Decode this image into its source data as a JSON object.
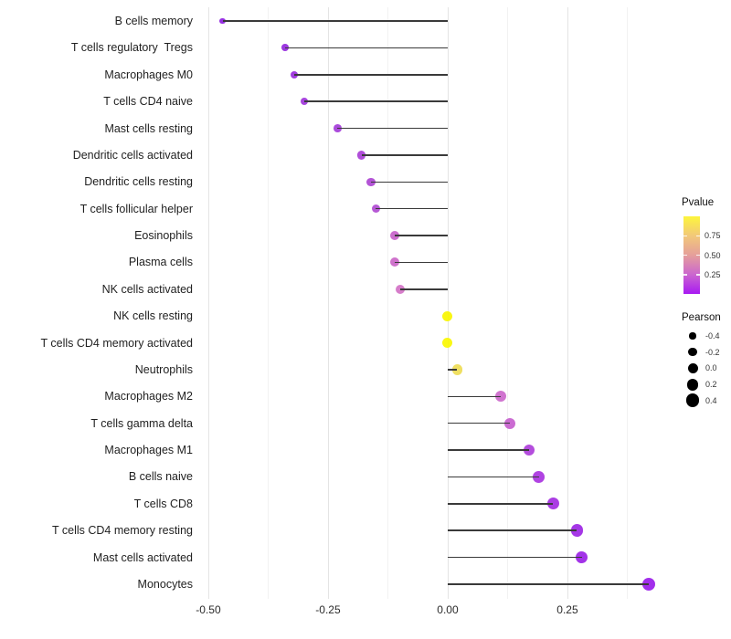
{
  "chart_data": {
    "type": "lollipop",
    "orientation": "horizontal",
    "title": "",
    "xlabel": "",
    "ylabel": "",
    "xlim": [
      -0.519,
      0.468
    ],
    "grid": "major+minor vertical gridlines on white background",
    "x_ticks": [
      {
        "label": "-0.50",
        "value": -0.5
      },
      {
        "label": "-0.25",
        "value": -0.25
      },
      {
        "label": "0.00",
        "value": 0.0
      },
      {
        "label": "0.25",
        "value": 0.25
      }
    ],
    "x_minor_ticks": [
      -0.375,
      -0.125,
      0.125,
      0.375
    ],
    "rows": [
      {
        "label": "B cells memory",
        "pearson": -0.47,
        "color": "#8e1fdf"
      },
      {
        "label": "T cells regulatory  Tregs",
        "pearson": -0.34,
        "color": "#9428dd"
      },
      {
        "label": "Macrophages M0",
        "pearson": -0.32,
        "color": "#9a2cdc"
      },
      {
        "label": "T cells CD4 naive",
        "pearson": -0.3,
        "color": "#a036da"
      },
      {
        "label": "Mast cells resting",
        "pearson": -0.23,
        "color": "#a43cd9"
      },
      {
        "label": "Dendritic cells activated",
        "pearson": -0.18,
        "color": "#a93fd6"
      },
      {
        "label": "Dendritic cells resting",
        "pearson": -0.16,
        "color": "#ad45d3"
      },
      {
        "label": "T cells follicular helper",
        "pearson": -0.15,
        "color": "#b04bd1"
      },
      {
        "label": "Eosinophils",
        "pearson": -0.11,
        "color": "#c863ca"
      },
      {
        "label": "Plasma cells",
        "pearson": -0.11,
        "color": "#cb67c8"
      },
      {
        "label": "NK cells activated",
        "pearson": -0.1,
        "color": "#d272c5"
      },
      {
        "label": "NK cells resting",
        "pearson": 0.0,
        "color": "#f8f500"
      },
      {
        "label": "T cells CD4 memory activated",
        "pearson": 0.0,
        "color": "#faf700"
      },
      {
        "label": "Neutrophils",
        "pearson": 0.02,
        "color": "#eedc55"
      },
      {
        "label": "Macrophages M2",
        "pearson": 0.11,
        "color": "#cc68cb"
      },
      {
        "label": "T cells gamma delta",
        "pearson": 0.13,
        "color": "#c75fce"
      },
      {
        "label": "Macrophages M1",
        "pearson": 0.17,
        "color": "#ae3eda"
      },
      {
        "label": "B cells naive",
        "pearson": 0.19,
        "color": "#a933df"
      },
      {
        "label": "T cells CD8",
        "pearson": 0.22,
        "color": "#a32ce1"
      },
      {
        "label": "T cells CD4 memory resting",
        "pearson": 0.27,
        "color": "#9d26e4"
      },
      {
        "label": "Mast cells activated",
        "pearson": 0.28,
        "color": "#9b22e6"
      },
      {
        "label": "Monocytes",
        "pearson": 0.42,
        "color": "#9a1de9"
      }
    ],
    "legends": {
      "pvalue": {
        "title": "Pvalue",
        "ticks": [
          {
            "label": "0.75",
            "value": 0.75
          },
          {
            "label": "0.50",
            "value": 0.5
          },
          {
            "label": "0.25",
            "value": 0.25
          }
        ],
        "gradient_bottom_to_top": [
          "#a81af2",
          "#cb66cf",
          "#e59f9b",
          "#f2c879",
          "#fdf53c"
        ],
        "range": [
          0,
          1
        ]
      },
      "pearson": {
        "title": "Pearson",
        "entries": [
          {
            "label": "-0.4",
            "value": -0.4
          },
          {
            "label": "-0.2",
            "value": -0.2
          },
          {
            "label": "0.0",
            "value": 0.0
          },
          {
            "label": "0.2",
            "value": 0.2
          },
          {
            "label": "0.4",
            "value": 0.4
          }
        ]
      }
    },
    "stick_color": "#3a3a3a",
    "stick_origin": 0.0
  }
}
